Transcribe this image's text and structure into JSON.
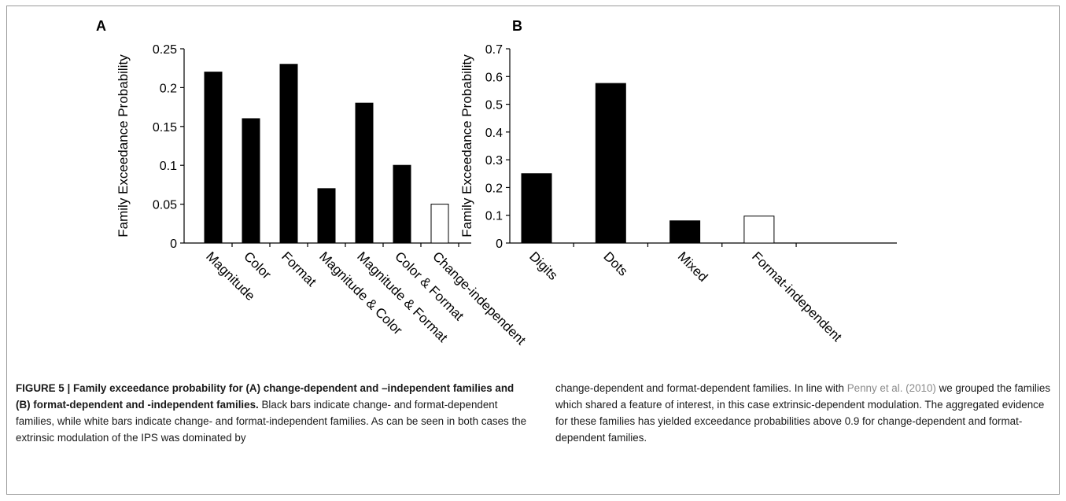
{
  "chart_data": [
    {
      "panel": "A",
      "type": "bar",
      "ylabel": "Family Exceedance Probability",
      "ylim": [
        0,
        0.25
      ],
      "yticks": [
        "0",
        "0.05",
        "0.1",
        "0.15",
        "0.2",
        "0.25"
      ],
      "categories": [
        "Magnitude",
        "Color",
        "Format",
        "Magnitude & Color",
        "Magnitude & Format",
        "Color & Format",
        "Change-independent"
      ],
      "values": [
        0.22,
        0.16,
        0.23,
        0.07,
        0.18,
        0.1,
        0.05
      ],
      "fills": [
        "#000000",
        "#000000",
        "#000000",
        "#000000",
        "#000000",
        "#000000",
        "#ffffff"
      ]
    },
    {
      "panel": "B",
      "type": "bar",
      "ylabel": "Family Exceedance Probability",
      "ylim": [
        0,
        0.7
      ],
      "yticks": [
        "0",
        "0.1",
        "0.2",
        "0.3",
        "0.4",
        "0.5",
        "0.6",
        "0.7"
      ],
      "categories": [
        "Digits",
        "Dots",
        "Mixed",
        "Format-independent"
      ],
      "values": [
        0.25,
        0.575,
        0.08,
        0.097
      ],
      "fills": [
        "#000000",
        "#000000",
        "#000000",
        "#ffffff"
      ]
    }
  ],
  "caption": {
    "left_lead": "FIGURE 5 | Family exceedance probability for (A) change-dependent and –independent families and (B) format-dependent and -independent families.",
    "left_body": " Black bars indicate change- and format-dependent families, while white bars indicate change- and format-independent families. As can be seen in both cases the extrinsic modulation of the IPS was dominated by",
    "right_pre": "change-dependent and format-dependent families. In line with ",
    "right_cite": "Penny et al. (2010)",
    "right_post": " we grouped the families which shared a feature of interest, in this case extrinsic-dependent modulation. The aggregated evidence for these families has yielded exceedance probabilities above 0.9 for change-dependent and format-dependent families."
  }
}
